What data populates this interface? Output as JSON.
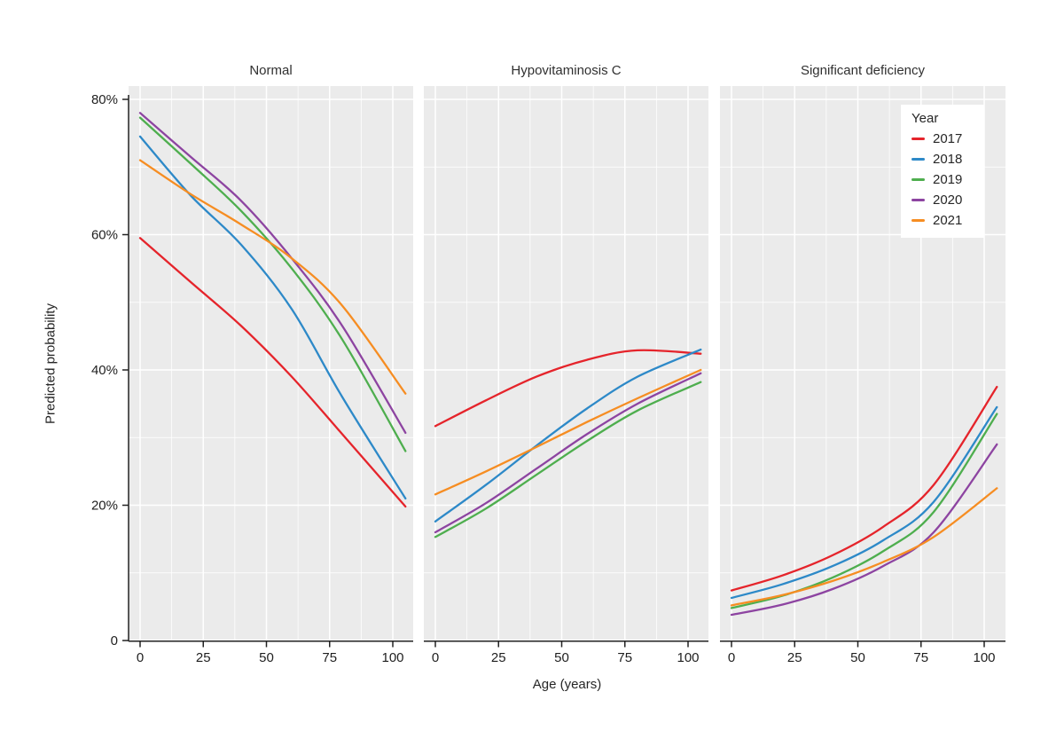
{
  "chart_data": {
    "type": "line",
    "facets": [
      "Normal",
      "Hypovitaminosis C",
      "Significant deficiency"
    ],
    "facet_keys": [
      "normal",
      "hypovitaminosis_c",
      "significant_deficiency"
    ],
    "x": [
      0,
      20,
      40,
      60,
      80,
      105
    ],
    "xlabel": "Age (years)",
    "ylabel": "Predicted probability",
    "x_tick_values": [
      0,
      25,
      50,
      75,
      100
    ],
    "x_tick_labels": [
      "0",
      "25",
      "50",
      "75",
      "100"
    ],
    "y_tick_values": [
      0,
      20,
      40,
      60,
      80
    ],
    "y_tick_labels": [
      "0",
      "20%",
      "40%",
      "60%",
      "80%"
    ],
    "ylim": [
      0,
      82
    ],
    "grid": "on",
    "legend_title": "Year",
    "legend_position": "top-right-inside",
    "panel_bg_color": "#ebebeb",
    "grid_color": "#ffffff",
    "axis_color": "#222222",
    "series": [
      {
        "name": "2017",
        "color": "#e5242b",
        "values": {
          "normal": [
            59.5,
            53.0,
            46.5,
            39.0,
            30.5,
            19.8
          ],
          "hypovitaminosis_c": [
            31.7,
            35.5,
            39.0,
            41.5,
            42.9,
            42.4
          ],
          "significant_deficiency": [
            7.4,
            9.6,
            12.6,
            16.8,
            23.0,
            37.5
          ]
        }
      },
      {
        "name": "2018",
        "color": "#2d89c8",
        "values": {
          "normal": [
            74.5,
            65.8,
            58.5,
            49.0,
            36.0,
            21.0
          ],
          "hypovitaminosis_c": [
            17.6,
            23.0,
            28.8,
            34.3,
            39.0,
            43.0
          ],
          "significant_deficiency": [
            6.3,
            8.3,
            11.0,
            14.8,
            20.5,
            34.5
          ]
        }
      },
      {
        "name": "2019",
        "color": "#4eae4e",
        "values": {
          "normal": [
            77.3,
            70.5,
            63.5,
            55.0,
            44.5,
            28.0
          ],
          "hypovitaminosis_c": [
            15.3,
            19.5,
            24.5,
            29.5,
            34.0,
            38.2
          ],
          "significant_deficiency": [
            4.8,
            6.6,
            9.3,
            13.2,
            19.0,
            33.5
          ]
        }
      },
      {
        "name": "2020",
        "color": "#8d44a1",
        "values": {
          "normal": [
            78.0,
            71.5,
            65.0,
            56.5,
            46.5,
            30.7
          ],
          "hypovitaminosis_c": [
            16.0,
            20.3,
            25.4,
            30.5,
            35.0,
            39.5
          ],
          "significant_deficiency": [
            3.8,
            5.3,
            7.6,
            11.0,
            16.0,
            29.0
          ]
        }
      },
      {
        "name": "2021",
        "color": "#f68d22",
        "values": {
          "normal": [
            71.0,
            66.0,
            61.5,
            56.5,
            49.5,
            36.5
          ],
          "hypovitaminosis_c": [
            21.6,
            25.0,
            28.6,
            32.3,
            35.8,
            40.0
          ],
          "significant_deficiency": [
            5.2,
            6.7,
            8.8,
            11.6,
            15.3,
            22.5
          ]
        }
      }
    ]
  }
}
